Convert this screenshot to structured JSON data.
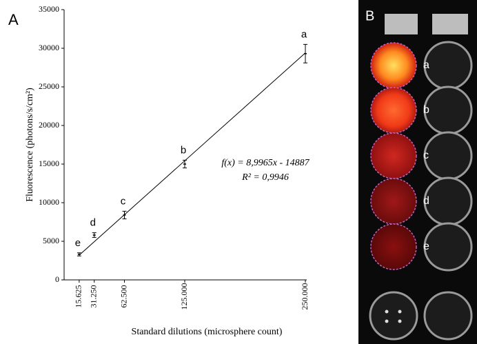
{
  "chart_data": {
    "type": "scatter",
    "panel_label": "A",
    "xlabel": "Standard dilutions  (microsphere count)",
    "ylabel": "Fluorescence (photons/s/cm²)",
    "x": [
      15625,
      31250,
      62500,
      125000,
      250000
    ],
    "series": [
      {
        "values": [
          3300,
          5800,
          8400,
          15000,
          29300
        ],
        "errors": [
          200,
          300,
          500,
          500,
          1200
        ],
        "point_labels": [
          "e",
          "d",
          "c",
          "b",
          "a"
        ],
        "color": "#000000"
      }
    ],
    "xlim": [
      0,
      250000
    ],
    "ylim": [
      0,
      35000
    ],
    "xticks": [
      {
        "value": 15625,
        "label": "15.625"
      },
      {
        "value": 31250,
        "label": "31.250"
      },
      {
        "value": 62500,
        "label": "62.500"
      },
      {
        "value": 125000,
        "label": "125.000"
      },
      {
        "value": 250000,
        "label": "250.000"
      }
    ],
    "yticks": [
      0,
      5000,
      10000,
      15000,
      20000,
      25000,
      30000,
      35000
    ],
    "fit": {
      "x": [
        15625,
        250000
      ],
      "y": [
        3200,
        29400
      ]
    },
    "annotations": [
      "f(x) = 8,9965x - 14887",
      "R² = 0,9946"
    ]
  },
  "panel_b": {
    "label": "B",
    "well_labels": [
      "a",
      "b",
      "c",
      "d",
      "e"
    ]
  }
}
